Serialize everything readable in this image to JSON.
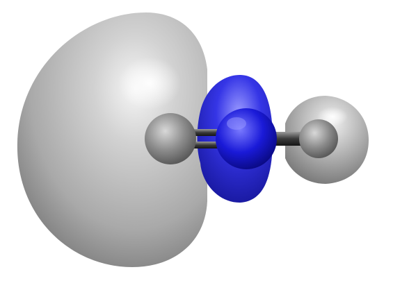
{
  "scene": {
    "subject": "molecular-orbital-isosurface",
    "background_color": "#ffffff",
    "colors": {
      "lobe_gray": "#b8b8b8",
      "lobe_highlight": "#f4f4f4",
      "lobe_shadow": "#6e6e6e",
      "lobe_blue": "#2b2bd6",
      "atom_gray": "#8a8a8a",
      "atom_blue": "#1010c8",
      "bond_dark": "#3a3a3a"
    }
  }
}
